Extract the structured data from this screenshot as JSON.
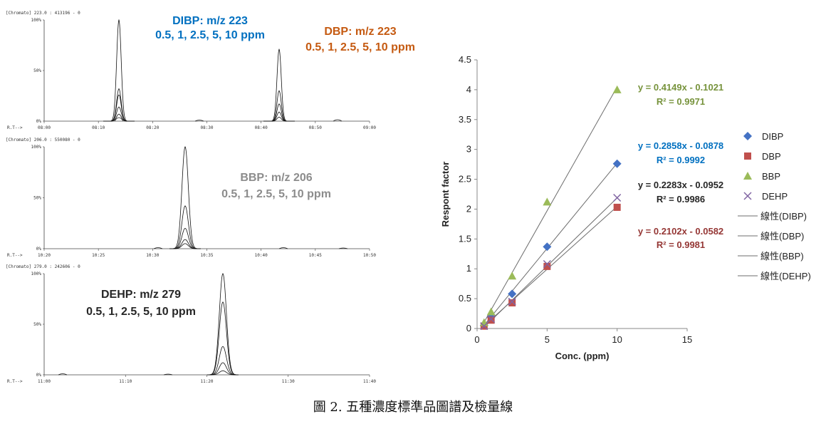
{
  "caption": "圖 2. 五種濃度標準品圖譜及檢量線",
  "chromatograms": [
    {
      "header": "[Chromato]  223.0 : 413196 - 0",
      "y_ticks": [
        "100%",
        "50%",
        "0%"
      ],
      "x_ticks": [
        "R.T-->",
        "08:00",
        "08:10",
        "08:20",
        "08:30",
        "08:40",
        "08:50",
        "09:00"
      ],
      "labels": [
        {
          "lines": [
            "DIBP: m/z 223",
            "0.5, 1, 2.5, 5, 10 ppm"
          ],
          "color": "#0070c0"
        },
        {
          "lines": [
            "DBP: m/z 223",
            "0.5, 1, 2.5, 5, 10 ppm"
          ],
          "color": "#c55a11"
        }
      ]
    },
    {
      "header": "[Chromato]  206.0 : 550080 - 0",
      "y_ticks": [
        "100%",
        "50%",
        "0%"
      ],
      "x_ticks": [
        "R.T-->",
        "10:20",
        "10:25",
        "10:30",
        "10:35",
        "10:40",
        "10:45",
        "10:50"
      ],
      "labels": [
        {
          "lines": [
            "BBP: m/z 206",
            "0.5, 1, 2.5, 5, 10 ppm"
          ],
          "color": "#8c8c8c"
        }
      ]
    },
    {
      "header": "[Chromato]  279.0 : 242606 - 0",
      "y_ticks": [
        "100%",
        "50%",
        "0%"
      ],
      "x_ticks": [
        "R.T-->",
        "11:00",
        "11:10",
        "11:20",
        "11:30",
        "11:40"
      ],
      "labels": [
        {
          "lines": [
            "DEHP: m/z 279",
            "0.5, 1, 2.5, 5, 10 ppm"
          ],
          "color": "#262626"
        }
      ]
    }
  ],
  "chart_data": {
    "type": "scatter",
    "title": "",
    "xlabel": "Conc. (ppm)",
    "ylabel": "Respont factor",
    "xlim": [
      0,
      15
    ],
    "ylim": [
      0,
      4.5
    ],
    "x_ticks": [
      0,
      5,
      10,
      15
    ],
    "y_ticks": [
      0,
      0.5,
      1,
      1.5,
      2,
      2.5,
      3,
      3.5,
      4,
      4.5
    ],
    "legend_position": "right",
    "series": [
      {
        "name": "DIBP",
        "marker": "diamond",
        "color": "#4472c4",
        "x": [
          0.5,
          1,
          2.5,
          5,
          10
        ],
        "y": [
          0.05,
          0.19,
          0.58,
          1.37,
          2.76
        ]
      },
      {
        "name": "DBP",
        "marker": "square",
        "color": "#c0504d",
        "x": [
          0.5,
          1,
          2.5,
          5,
          10
        ],
        "y": [
          0.04,
          0.14,
          0.43,
          1.04,
          2.03
        ]
      },
      {
        "name": "BBP",
        "marker": "triangle",
        "color": "#9bbb59",
        "x": [
          0.5,
          1,
          2.5,
          5,
          10
        ],
        "y": [
          0.1,
          0.28,
          0.88,
          2.12,
          4.0
        ]
      },
      {
        "name": "DEHP",
        "marker": "x",
        "color": "#8064a2",
        "x": [
          0.5,
          1,
          2.5,
          5,
          10
        ],
        "y": [
          0.04,
          0.16,
          0.45,
          1.08,
          2.19
        ]
      }
    ],
    "trendlines": [
      {
        "name": "線性(DIBP)",
        "slope": 0.2858,
        "intercept": -0.0878
      },
      {
        "name": "線性(DBP)",
        "slope": 0.2102,
        "intercept": -0.0582
      },
      {
        "name": "線性(BBP)",
        "slope": 0.4149,
        "intercept": -0.1021
      },
      {
        "name": "線性(DEHP)",
        "slope": 0.2283,
        "intercept": -0.0952
      }
    ],
    "annotations": [
      {
        "series": "BBP",
        "equation": "y = 0.4149x - 0.1021",
        "r2": "R² = 0.9971",
        "color": "#77933c"
      },
      {
        "series": "DIBP",
        "equation": "y = 0.2858x - 0.0878",
        "r2": "R² = 0.9992",
        "color": "#0070c0"
      },
      {
        "series": "DEHP",
        "equation": "y = 0.2283x - 0.0952",
        "r2": "R² = 0.9986",
        "color": "#262626"
      },
      {
        "series": "DBP",
        "equation": "y = 0.2102x - 0.0582",
        "r2": "R² = 0.9981",
        "color": "#953735"
      }
    ]
  }
}
